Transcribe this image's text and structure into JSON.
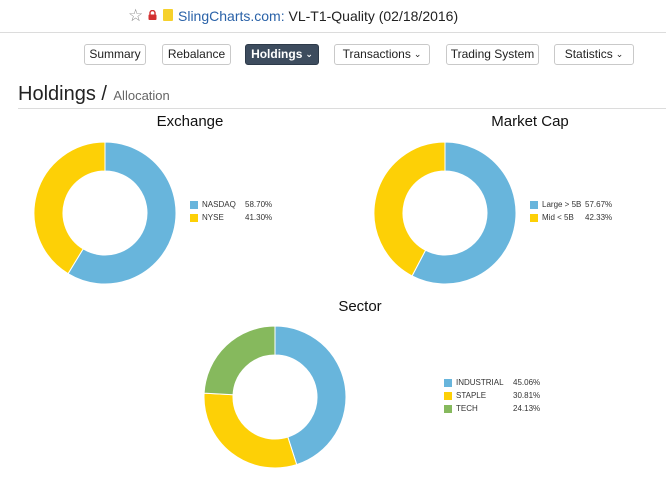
{
  "browser": {
    "site_name": "SlingCharts.com:",
    "page_title_rest": "VL-T1-Quality (02/18/2016)"
  },
  "nav": {
    "summary": "Summary",
    "rebalance": "Rebalance",
    "holdings": "Holdings",
    "transactions": "Transactions",
    "trading_system": "Trading System",
    "statistics": "Statistics",
    "chevron": "⌄"
  },
  "page": {
    "heading": "Holdings /",
    "subheading": "Allocation"
  },
  "colors": {
    "blue": "#68b5dc",
    "yellow": "#fdd006",
    "green": "#86b95d"
  },
  "chart_data": [
    {
      "type": "pie",
      "title": "Exchange",
      "labels": [
        "NASDAQ",
        "NYSE"
      ],
      "values": [
        58.7,
        41.3
      ],
      "display": [
        "58.70%",
        "41.30%"
      ],
      "colors": [
        "#68b5dc",
        "#fdd006"
      ],
      "legend": "right"
    },
    {
      "type": "pie",
      "title": "Market Cap",
      "labels": [
        "Large > 5B",
        "Mid < 5B"
      ],
      "values": [
        57.67,
        42.33
      ],
      "display": [
        "57.67%",
        "42.33%"
      ],
      "colors": [
        "#68b5dc",
        "#fdd006"
      ],
      "legend": "right"
    },
    {
      "type": "pie",
      "title": "Sector",
      "labels": [
        "INDUSTRIAL",
        "STAPLE",
        "TECH"
      ],
      "values": [
        45.06,
        30.81,
        24.13
      ],
      "display": [
        "45.06%",
        "30.81%",
        "24.13%"
      ],
      "colors": [
        "#68b5dc",
        "#fdd006",
        "#86b95d"
      ],
      "legend": "right"
    }
  ]
}
